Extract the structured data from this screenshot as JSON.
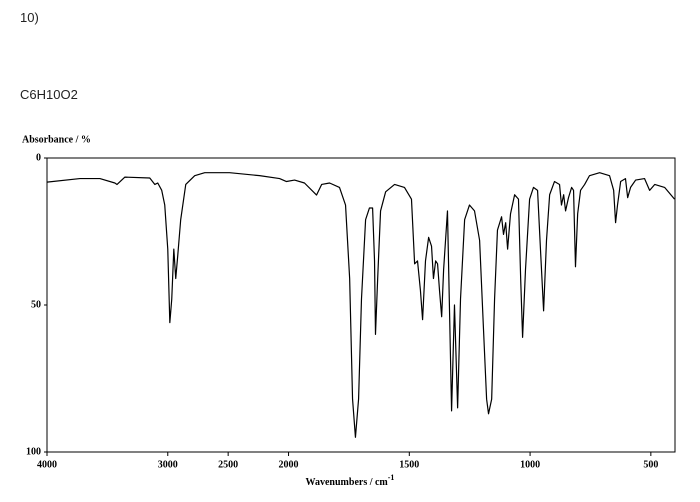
{
  "question_number": "10)",
  "formula": "C6H10O2",
  "chart_data": {
    "type": "line",
    "ylabel": "Absorbance / %",
    "xlabel": "Wavenumbers / cm",
    "xlabel_sup": "-1",
    "color": "#000000",
    "xlim": [
      4000,
      400
    ],
    "ylim": [
      0,
      100
    ],
    "y_inverted": true,
    "x_scale_break": 2000,
    "x_scale_factor": 2,
    "grid": false,
    "xticks": [
      4000,
      3000,
      2500,
      2000,
      1500,
      1000,
      500
    ],
    "yticks": [
      0,
      50,
      100
    ],
    "x": [
      4000,
      3727,
      3562,
      3438,
      3420,
      3355,
      3149,
      3107,
      3083,
      3050,
      3025,
      3000,
      2983,
      2967,
      2950,
      2934,
      2917,
      2893,
      2851,
      2777,
      2694,
      2488,
      2240,
      2074,
      2017,
      1975,
      1934,
      1884,
      1863,
      1830,
      1789,
      1764,
      1747,
      1735,
      1723,
      1710,
      1698,
      1681,
      1665,
      1652,
      1644,
      1640,
      1631,
      1619,
      1598,
      1561,
      1520,
      1491,
      1478,
      1466,
      1454,
      1445,
      1433,
      1420,
      1408,
      1400,
      1391,
      1383,
      1375,
      1366,
      1358,
      1342,
      1325,
      1313,
      1300,
      1288,
      1271,
      1251,
      1230,
      1209,
      1193,
      1180,
      1172,
      1159,
      1147,
      1135,
      1118,
      1110,
      1101,
      1093,
      1081,
      1064,
      1048,
      1039,
      1031,
      1019,
      1002,
      986,
      969,
      957,
      944,
      932,
      919,
      899,
      878,
      870,
      861,
      853,
      841,
      828,
      820,
      812,
      803,
      791,
      774,
      754,
      712,
      671,
      654,
      646,
      638,
      625,
      605,
      596,
      584,
      563,
      526,
      505,
      484,
      443,
      402
    ],
    "values": [
      8.2,
      7,
      7,
      8.5,
      9,
      6.5,
      6.8,
      9,
      8.5,
      11,
      16,
      31,
      56,
      48,
      31,
      41,
      33,
      21,
      9,
      6,
      5,
      5,
      6,
      7,
      8,
      7.5,
      8.5,
      12.6,
      9,
      8.5,
      10,
      16,
      41,
      82,
      95,
      82,
      48,
      21,
      17,
      17,
      35,
      60,
      41,
      18,
      11.5,
      9,
      10,
      14,
      36,
      35,
      45,
      55,
      35,
      27,
      30,
      41,
      35,
      36,
      45,
      54,
      38,
      18,
      86,
      50,
      85,
      48,
      21,
      16,
      18,
      28,
      58,
      82,
      87,
      82,
      48,
      24.5,
      20,
      26,
      22,
      31,
      19,
      12.5,
      14,
      41,
      61,
      38,
      14,
      10,
      11,
      31,
      52,
      28,
      12.5,
      8,
      9,
      16,
      12.5,
      18,
      13.5,
      10,
      11,
      37,
      19,
      11,
      9,
      6,
      5,
      6,
      11,
      22,
      16,
      8,
      7,
      13.5,
      10,
      7.5,
      7,
      11,
      9,
      10,
      14
    ]
  }
}
